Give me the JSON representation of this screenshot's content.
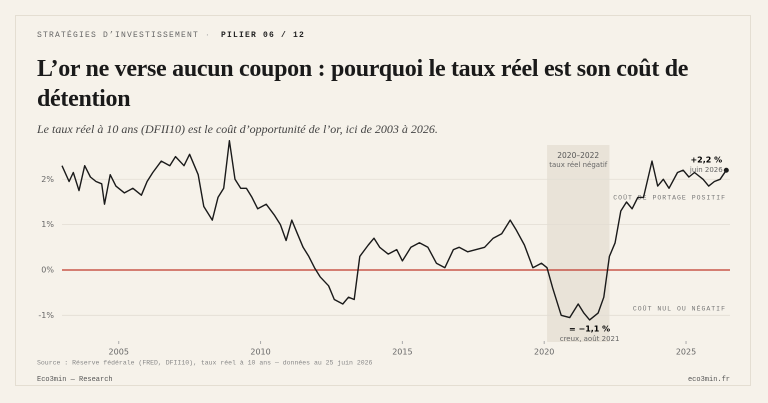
{
  "header": {
    "kicker": "STRATÉGIES D’INVESTISSEMENT",
    "section": "PILIER 06 / 12"
  },
  "chart_data": {
    "type": "line",
    "title": "L’or ne verse aucun coupon : pourquoi le taux réel est son coût de détention",
    "subtitle": "Le taux réel à 10 ans (DFII10) est le coût d’opportunité de l’or, ici de 2003 à 2026.",
    "x": [
      2003.0,
      2003.25,
      2003.4,
      2003.6,
      2003.8,
      2004.0,
      2004.2,
      2004.4,
      2004.5,
      2004.7,
      2004.9,
      2005.2,
      2005.5,
      2005.8,
      2006.0,
      2006.2,
      2006.5,
      2006.8,
      2007.0,
      2007.3,
      2007.5,
      2007.8,
      2008.0,
      2008.3,
      2008.5,
      2008.7,
      2008.9,
      2009.1,
      2009.3,
      2009.5,
      2009.7,
      2009.9,
      2010.2,
      2010.5,
      2010.7,
      2010.9,
      2011.1,
      2011.3,
      2011.5,
      2011.7,
      2011.9,
      2012.1,
      2012.4,
      2012.6,
      2012.9,
      2013.1,
      2013.3,
      2013.5,
      2013.8,
      2014.0,
      2014.2,
      2014.5,
      2014.8,
      2015.0,
      2015.3,
      2015.6,
      2015.9,
      2016.2,
      2016.5,
      2016.8,
      2017.0,
      2017.3,
      2017.6,
      2017.9,
      2018.2,
      2018.5,
      2018.8,
      2019.0,
      2019.3,
      2019.6,
      2019.9,
      2020.1,
      2020.3,
      2020.6,
      2020.9,
      2021.2,
      2021.4,
      2021.6,
      2021.9,
      2022.1,
      2022.3,
      2022.5,
      2022.7,
      2022.9,
      2023.1,
      2023.3,
      2023.5,
      2023.8,
      2024.0,
      2024.2,
      2024.4,
      2024.7,
      2024.9,
      2025.1,
      2025.3,
      2025.6,
      2025.8,
      2026.0,
      2026.2,
      2026.42
    ],
    "values": [
      2.3,
      1.95,
      2.15,
      1.75,
      2.3,
      2.05,
      1.95,
      1.9,
      1.45,
      2.1,
      1.85,
      1.7,
      1.8,
      1.65,
      1.95,
      2.15,
      2.4,
      2.3,
      2.5,
      2.3,
      2.55,
      2.1,
      1.4,
      1.1,
      1.6,
      1.8,
      2.85,
      2.0,
      1.8,
      1.8,
      1.6,
      1.35,
      1.45,
      1.2,
      1.0,
      0.65,
      1.1,
      0.8,
      0.5,
      0.3,
      0.05,
      -0.15,
      -0.35,
      -0.65,
      -0.75,
      -0.6,
      -0.65,
      0.3,
      0.55,
      0.7,
      0.5,
      0.35,
      0.45,
      0.2,
      0.5,
      0.6,
      0.5,
      0.15,
      0.05,
      0.45,
      0.5,
      0.4,
      0.45,
      0.5,
      0.7,
      0.8,
      1.1,
      0.9,
      0.55,
      0.05,
      0.15,
      0.05,
      -0.4,
      -1.0,
      -1.05,
      -0.75,
      -0.95,
      -1.1,
      -0.95,
      -0.6,
      0.3,
      0.6,
      1.3,
      1.5,
      1.35,
      1.6,
      1.6,
      2.4,
      1.85,
      2.0,
      1.8,
      2.15,
      2.2,
      2.05,
      2.15,
      2.0,
      1.85,
      1.95,
      2.0,
      2.2
    ],
    "color": "#1a1a1a",
    "xlim": [
      2003,
      2026.55
    ],
    "ylim": [
      -1.5,
      2.8
    ],
    "xticks": [
      2005,
      2010,
      2015,
      2020,
      2025
    ],
    "yticks": [
      {
        "value": 2,
        "label": "2%"
      },
      {
        "value": 1,
        "label": "1%"
      },
      {
        "value": 0,
        "label": "0%"
      },
      {
        "value": -1,
        "label": "-1%"
      }
    ],
    "grid": true,
    "zero_line_color": "#c0392b",
    "band": {
      "x": [
        2020.1,
        2022.3
      ],
      "label": "2020–2022",
      "sublabel": "taux réel négatif"
    },
    "last_point": {
      "label": "+2,2 %",
      "sublabel": "juin 2026"
    },
    "low_point": {
      "label": "= −1,1 %",
      "sublabel": "creux, août 2021"
    },
    "zone_labels": [
      "COÛT DE PORTAGE POSITIF",
      "COÛT NUL OU NÉGATIF"
    ],
    "source": "Source : Réserve fédérale (FRED, DFII10), taux réel à 10 ans — données au 25 juin 2026"
  },
  "footer": {
    "left": "Eco3min — Research",
    "right": "eco3min.fr"
  }
}
